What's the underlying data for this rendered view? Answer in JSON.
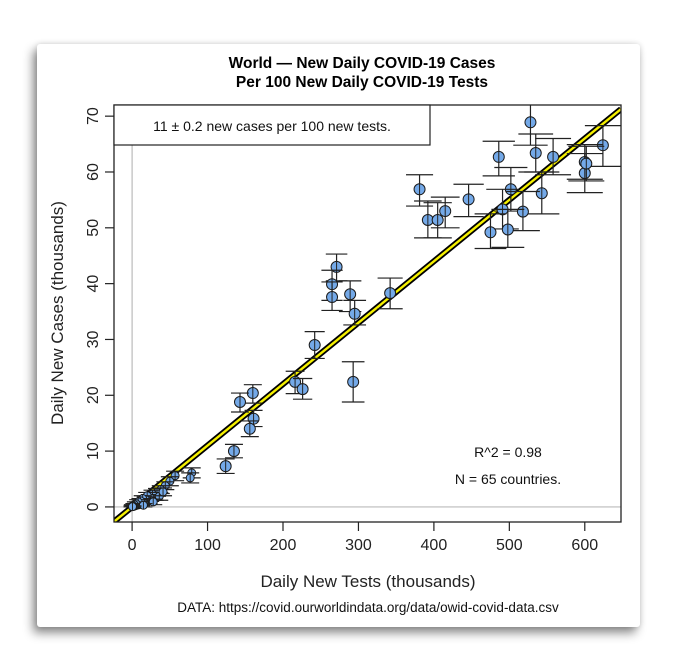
{
  "chart_data": {
    "type": "scatter",
    "title": [
      "World — New Daily COVID-19 Cases",
      "Per 100 New Daily COVID-19 Tests"
    ],
    "xlabel": "Daily New Tests (thousands)",
    "ylabel": "Daily New Cases (thousands)",
    "xlim": [
      -24,
      648
    ],
    "ylim": [
      -2.7,
      72
    ],
    "xticks": [
      0,
      100,
      200,
      300,
      400,
      500,
      600
    ],
    "yticks": [
      0,
      10,
      20,
      30,
      40,
      50,
      60,
      70
    ],
    "legend_text": "11 ± 0.2 new cases per 100 new tests.",
    "legend_position": "top-left",
    "annotations": [
      "R^2 = 0.98",
      "N = 65 countries."
    ],
    "source": "DATA: https://covid.ourworldindata.org/data/owid-covid-data.csv",
    "fit_line": {
      "slope": 0.11,
      "intercept": 0
    },
    "point_color": "#74a9e8",
    "line_color": "#f5f000",
    "points": [
      {
        "x": 528,
        "y": 68.9,
        "ylo": 64.8,
        "yhi": 72.8
      },
      {
        "x": 535,
        "y": 63.4,
        "ylo": 60.0,
        "yhi": 66.8
      },
      {
        "x": 558,
        "y": 62.7,
        "ylo": 59.5,
        "yhi": 66.0
      },
      {
        "x": 486,
        "y": 62.7,
        "ylo": 59.3,
        "yhi": 65.5
      },
      {
        "x": 624,
        "y": 64.8,
        "ylo": 61.0,
        "yhi": 68.3
      },
      {
        "x": 600,
        "y": 61.8,
        "ylo": 58.7,
        "yhi": 64.9
      },
      {
        "x": 600,
        "y": 59.8,
        "ylo": 56.3,
        "yhi": 63.3
      },
      {
        "x": 602,
        "y": 61.5,
        "ylo": 58.4,
        "yhi": 64.6
      },
      {
        "x": 502,
        "y": 56.9,
        "ylo": 53.0,
        "yhi": 60.8
      },
      {
        "x": 543,
        "y": 56.2,
        "ylo": 52.5,
        "yhi": 60.0
      },
      {
        "x": 381,
        "y": 56.9,
        "ylo": 53.9,
        "yhi": 59.5
      },
      {
        "x": 446,
        "y": 55.1,
        "ylo": 52.0,
        "yhi": 57.8
      },
      {
        "x": 415,
        "y": 53.0,
        "ylo": 50.0,
        "yhi": 55.5
      },
      {
        "x": 392,
        "y": 51.4,
        "ylo": 48.2,
        "yhi": 54.8
      },
      {
        "x": 405,
        "y": 51.4,
        "ylo": 48.2,
        "yhi": 54.5
      },
      {
        "x": 491,
        "y": 53.3,
        "ylo": 49.8,
        "yhi": 56.9
      },
      {
        "x": 518,
        "y": 52.9,
        "ylo": 49.5,
        "yhi": 56.5
      },
      {
        "x": 475,
        "y": 49.2,
        "ylo": 46.3,
        "yhi": 52.5
      },
      {
        "x": 498,
        "y": 49.7,
        "ylo": 46.5,
        "yhi": 53.3
      },
      {
        "x": 342,
        "y": 38.3,
        "ylo": 35.5,
        "yhi": 41.0
      },
      {
        "x": 271,
        "y": 43.0,
        "ylo": 40.5,
        "yhi": 45.3
      },
      {
        "x": 265,
        "y": 39.9,
        "ylo": 37.0,
        "yhi": 42.4
      },
      {
        "x": 265,
        "y": 37.6,
        "ylo": 35.2,
        "yhi": 40.3
      },
      {
        "x": 289,
        "y": 38.1,
        "ylo": 35.0,
        "yhi": 40.5
      },
      {
        "x": 295,
        "y": 34.6,
        "ylo": 32.6,
        "yhi": 37.0
      },
      {
        "x": 242,
        "y": 29.0,
        "ylo": 26.6,
        "yhi": 31.4
      },
      {
        "x": 293,
        "y": 22.4,
        "ylo": 18.8,
        "yhi": 26.0
      },
      {
        "x": 216,
        "y": 22.4,
        "ylo": 20.3,
        "yhi": 24.3
      },
      {
        "x": 226,
        "y": 21.1,
        "ylo": 19.3,
        "yhi": 23.0
      },
      {
        "x": 160,
        "y": 20.4,
        "ylo": 18.6,
        "yhi": 21.9
      },
      {
        "x": 143,
        "y": 18.8,
        "ylo": 17.0,
        "yhi": 20.4
      },
      {
        "x": 161,
        "y": 15.8,
        "ylo": 14.4,
        "yhi": 17.3
      },
      {
        "x": 156,
        "y": 14.0,
        "ylo": 12.6,
        "yhi": 15.4
      },
      {
        "x": 135,
        "y": 10.0,
        "ylo": 8.8,
        "yhi": 11.2
      },
      {
        "x": 124,
        "y": 7.3,
        "ylo": 6.0,
        "yhi": 8.6
      },
      {
        "x": 79,
        "y": 6.1,
        "ylo": 5.2,
        "yhi": 7.0
      },
      {
        "x": 77,
        "y": 5.2,
        "ylo": 4.3,
        "yhi": 6.1
      },
      {
        "x": 57,
        "y": 5.6,
        "ylo": 4.7,
        "yhi": 6.4
      },
      {
        "x": 50,
        "y": 4.6,
        "ylo": 3.8,
        "yhi": 5.4
      },
      {
        "x": 44,
        "y": 3.8,
        "ylo": 3.1,
        "yhi": 4.5
      },
      {
        "x": 38,
        "y": 3.1,
        "ylo": 2.4,
        "yhi": 3.8
      },
      {
        "x": 33,
        "y": 2.6,
        "ylo": 1.9,
        "yhi": 3.3
      },
      {
        "x": 30,
        "y": 1.8,
        "ylo": 1.2,
        "yhi": 2.4
      },
      {
        "x": 27,
        "y": 2.3,
        "ylo": 1.6,
        "yhi": 3.0
      },
      {
        "x": 24,
        "y": 1.6,
        "ylo": 1.0,
        "yhi": 2.2
      },
      {
        "x": 22,
        "y": 1.0,
        "ylo": 0.5,
        "yhi": 1.5
      },
      {
        "x": 20,
        "y": 2.0,
        "ylo": 1.4,
        "yhi": 2.6
      },
      {
        "x": 18,
        "y": 1.3,
        "ylo": 0.8,
        "yhi": 1.8
      },
      {
        "x": 16,
        "y": 0.8,
        "ylo": 0.4,
        "yhi": 1.2
      },
      {
        "x": 14,
        "y": 1.5,
        "ylo": 1.0,
        "yhi": 2.0
      },
      {
        "x": 12,
        "y": 0.6,
        "ylo": 0.2,
        "yhi": 1.0
      },
      {
        "x": 11,
        "y": 1.1,
        "ylo": 0.7,
        "yhi": 1.5
      },
      {
        "x": 9,
        "y": 0.4,
        "ylo": 0.1,
        "yhi": 0.7
      },
      {
        "x": 8,
        "y": 0.9,
        "ylo": 0.5,
        "yhi": 1.3
      },
      {
        "x": 6,
        "y": 0.3,
        "ylo": 0.0,
        "yhi": 0.6
      },
      {
        "x": 5,
        "y": 0.6,
        "ylo": 0.3,
        "yhi": 0.9
      },
      {
        "x": 4,
        "y": 0.2,
        "ylo": 0.0,
        "yhi": 0.4
      },
      {
        "x": 3,
        "y": 0.4,
        "ylo": 0.2,
        "yhi": 0.6
      },
      {
        "x": 2,
        "y": 0.1,
        "ylo": 0.0,
        "yhi": 0.3
      },
      {
        "x": 1,
        "y": 0.2,
        "ylo": 0.0,
        "yhi": 0.4
      },
      {
        "x": 36,
        "y": 1.9,
        "ylo": 1.2,
        "yhi": 2.6
      },
      {
        "x": 41,
        "y": 2.7,
        "ylo": 2.0,
        "yhi": 3.4
      },
      {
        "x": 28,
        "y": 0.9,
        "ylo": 0.4,
        "yhi": 1.4
      },
      {
        "x": 15,
        "y": 0.3,
        "ylo": 0.0,
        "yhi": 0.6
      },
      {
        "x": 0.5,
        "y": 0.05,
        "ylo": 0.0,
        "yhi": 0.2
      }
    ]
  }
}
